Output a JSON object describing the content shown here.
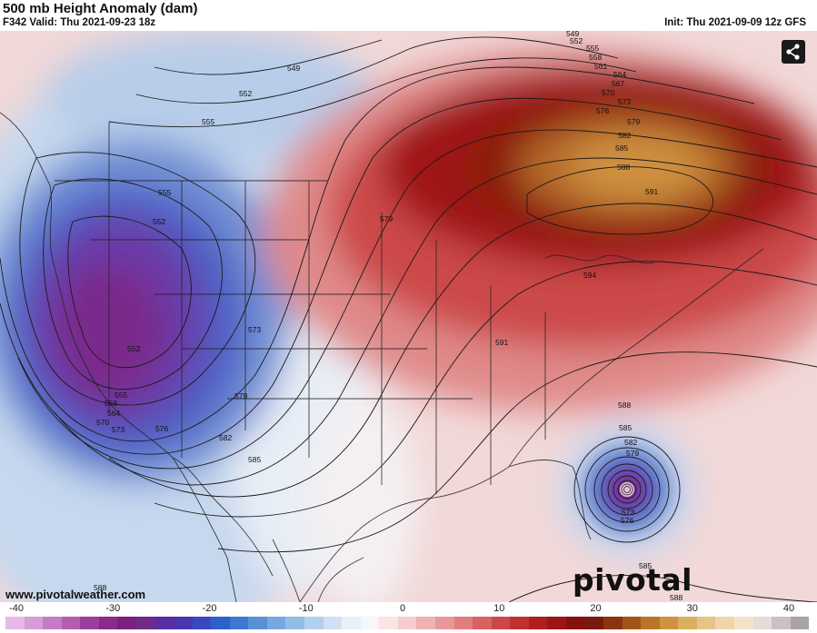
{
  "header": {
    "title": "500 mb Height Anomaly (dam)",
    "valid": "F342 Valid: Thu 2021-09-23 18z",
    "init": "Init: Thu 2021-09-09 12z GFS"
  },
  "branding": {
    "watermark": "pivotal weather",
    "website": "www.pivotalweather.com"
  },
  "share_icon": "share-icon",
  "colorbar": {
    "ticks": [
      "-40",
      "-30",
      "-20",
      "-10",
      "0",
      "10",
      "20",
      "30",
      "40"
    ],
    "colors": [
      "#e8b8e6",
      "#d99ad8",
      "#c77bc6",
      "#b35cb2",
      "#9c3f9c",
      "#8a2a8a",
      "#7a1f7e",
      "#702a8a",
      "#5a2ea0",
      "#4a35b0",
      "#3a48c0",
      "#2f5fc8",
      "#3f78d0",
      "#5a90d8",
      "#76a7df",
      "#93bde6",
      "#b1d1ed",
      "#cfe2f3",
      "#e8f0f8",
      "#f7f7f7",
      "#fbe4e4",
      "#f6cccc",
      "#efb2b2",
      "#e89898",
      "#e07d7d",
      "#d76262",
      "#cc4848",
      "#bf3030",
      "#b01e1e",
      "#9c1414",
      "#861010",
      "#7a1a0e",
      "#8a3510",
      "#a35518",
      "#bc7428",
      "#cf9240",
      "#dcae62",
      "#e6c488",
      "#efd6aa",
      "#f4e4c6",
      "#e6dada",
      "#c9c2c2",
      "#aaa4a4"
    ]
  },
  "contour_labels": [
    "549",
    "552",
    "555",
    "558",
    "561",
    "564",
    "567",
    "570",
    "576",
    "573",
    "579",
    "582",
    "585",
    "588",
    "591",
    "594"
  ],
  "map_labels": {
    "l549": "549",
    "l552a": "552",
    "l555a": "555",
    "l555b": "555",
    "l552b": "552",
    "l552c": "552",
    "l555c": "555",
    "l558": "558",
    "l564": "564",
    "l570": "570",
    "l573a": "573",
    "l576": "576",
    "l579a": "579",
    "l582a": "582",
    "l585a": "585",
    "l573b": "573",
    "l579b": "579",
    "l591a": "591",
    "l594": "594",
    "l591b": "591",
    "l588a": "588",
    "l585b": "585",
    "l582b": "582",
    "l579c": "579",
    "l576b": "576",
    "l573c": "573",
    "l585c": "585",
    "l588b": "588",
    "l588c": "588",
    "l552t": "552",
    "l555t": "555",
    "l558t": "558",
    "l561t": "561",
    "l564t": "564",
    "l567t": "567",
    "l570t": "570",
    "l573t": "573",
    "l576t": "576",
    "l579t": "579",
    "l582t": "582",
    "l585t": "585",
    "l588t": "588",
    "l549t": "549"
  },
  "colors": {
    "ridge_core": "#c8843a",
    "trough_core": "#7a2a8a",
    "contour": "#222222"
  }
}
